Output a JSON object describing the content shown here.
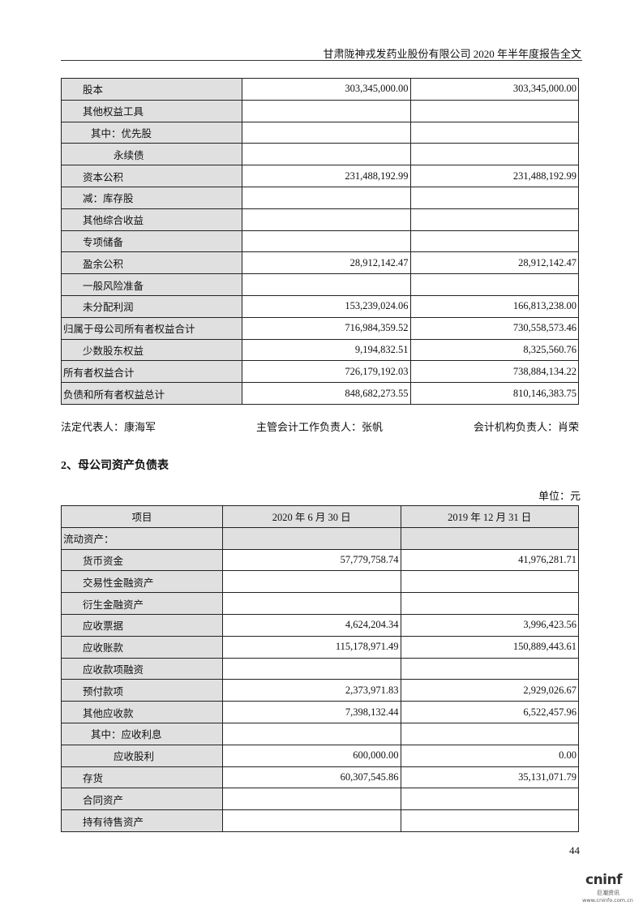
{
  "header": {
    "title": "甘肃陇神戎发药业股份有限公司 2020 年半年度报告全文"
  },
  "table1": {
    "rows": [
      {
        "label": "股本",
        "level": 1,
        "a": "303,345,000.00",
        "b": "303,345,000.00"
      },
      {
        "label": "其他权益工具",
        "level": 1,
        "a": "",
        "b": ""
      },
      {
        "label": "其中：优先股",
        "level": 2,
        "a": "",
        "b": ""
      },
      {
        "label": "永续债",
        "level": 3,
        "a": "",
        "b": ""
      },
      {
        "label": "资本公积",
        "level": 1,
        "a": "231,488,192.99",
        "b": "231,488,192.99"
      },
      {
        "label": "减：库存股",
        "level": 1,
        "a": "",
        "b": ""
      },
      {
        "label": "其他综合收益",
        "level": 1,
        "a": "",
        "b": ""
      },
      {
        "label": "专项储备",
        "level": 1,
        "a": "",
        "b": ""
      },
      {
        "label": "盈余公积",
        "level": 1,
        "a": "28,912,142.47",
        "b": "28,912,142.47"
      },
      {
        "label": "一般风险准备",
        "level": 1,
        "a": "",
        "b": ""
      },
      {
        "label": "未分配利润",
        "level": 1,
        "a": "153,239,024.06",
        "b": "166,813,238.00"
      },
      {
        "label": "归属于母公司所有者权益合计",
        "level": 0,
        "a": "716,984,359.52",
        "b": "730,558,573.46"
      },
      {
        "label": "少数股东权益",
        "level": 1,
        "a": "9,194,832.51",
        "b": "8,325,560.76"
      },
      {
        "label": "所有者权益合计",
        "level": 0,
        "a": "726,179,192.03",
        "b": "738,884,134.22"
      },
      {
        "label": "负债和所有者权益总计",
        "level": 0,
        "a": "848,682,273.55",
        "b": "810,146,383.75"
      }
    ]
  },
  "signatures": {
    "legal": "法定代表人：康海军",
    "accounting": "主管会计工作负责人：张帆",
    "agency": "会计机构负责人：肖荣"
  },
  "section_title": "2、母公司资产负债表",
  "unit": "单位：元",
  "table2": {
    "headers": [
      "项目",
      "2020 年 6 月 30 日",
      "2019 年 12 月 31 日"
    ],
    "rows": [
      {
        "label": "流动资产：",
        "level": 0,
        "a": "",
        "b": "",
        "gray": true
      },
      {
        "label": "货币资金",
        "level": 1,
        "a": "57,779,758.74",
        "b": "41,976,281.71"
      },
      {
        "label": "交易性金融资产",
        "level": 1,
        "a": "",
        "b": ""
      },
      {
        "label": "衍生金融资产",
        "level": 1,
        "a": "",
        "b": ""
      },
      {
        "label": "应收票据",
        "level": 1,
        "a": "4,624,204.34",
        "b": "3,996,423.56"
      },
      {
        "label": "应收账款",
        "level": 1,
        "a": "115,178,971.49",
        "b": "150,889,443.61"
      },
      {
        "label": "应收款项融资",
        "level": 1,
        "a": "",
        "b": ""
      },
      {
        "label": "预付款项",
        "level": 1,
        "a": "2,373,971.83",
        "b": "2,929,026.67"
      },
      {
        "label": "其他应收款",
        "level": 1,
        "a": "7,398,132.44",
        "b": "6,522,457.96"
      },
      {
        "label": "其中：应收利息",
        "level": 2,
        "a": "",
        "b": ""
      },
      {
        "label": "应收股利",
        "level": 3,
        "a": "600,000.00",
        "b": "0.00"
      },
      {
        "label": "存货",
        "level": 1,
        "a": "60,307,545.86",
        "b": "35,131,071.79"
      },
      {
        "label": "合同资产",
        "level": 1,
        "a": "",
        "b": ""
      },
      {
        "label": "持有待售资产",
        "level": 1,
        "a": "",
        "b": ""
      }
    ]
  },
  "page_number": "44",
  "logo": {
    "brand": "cninf",
    "sub": "巨潮资讯",
    "url": "www.cninfo.com.cn"
  }
}
